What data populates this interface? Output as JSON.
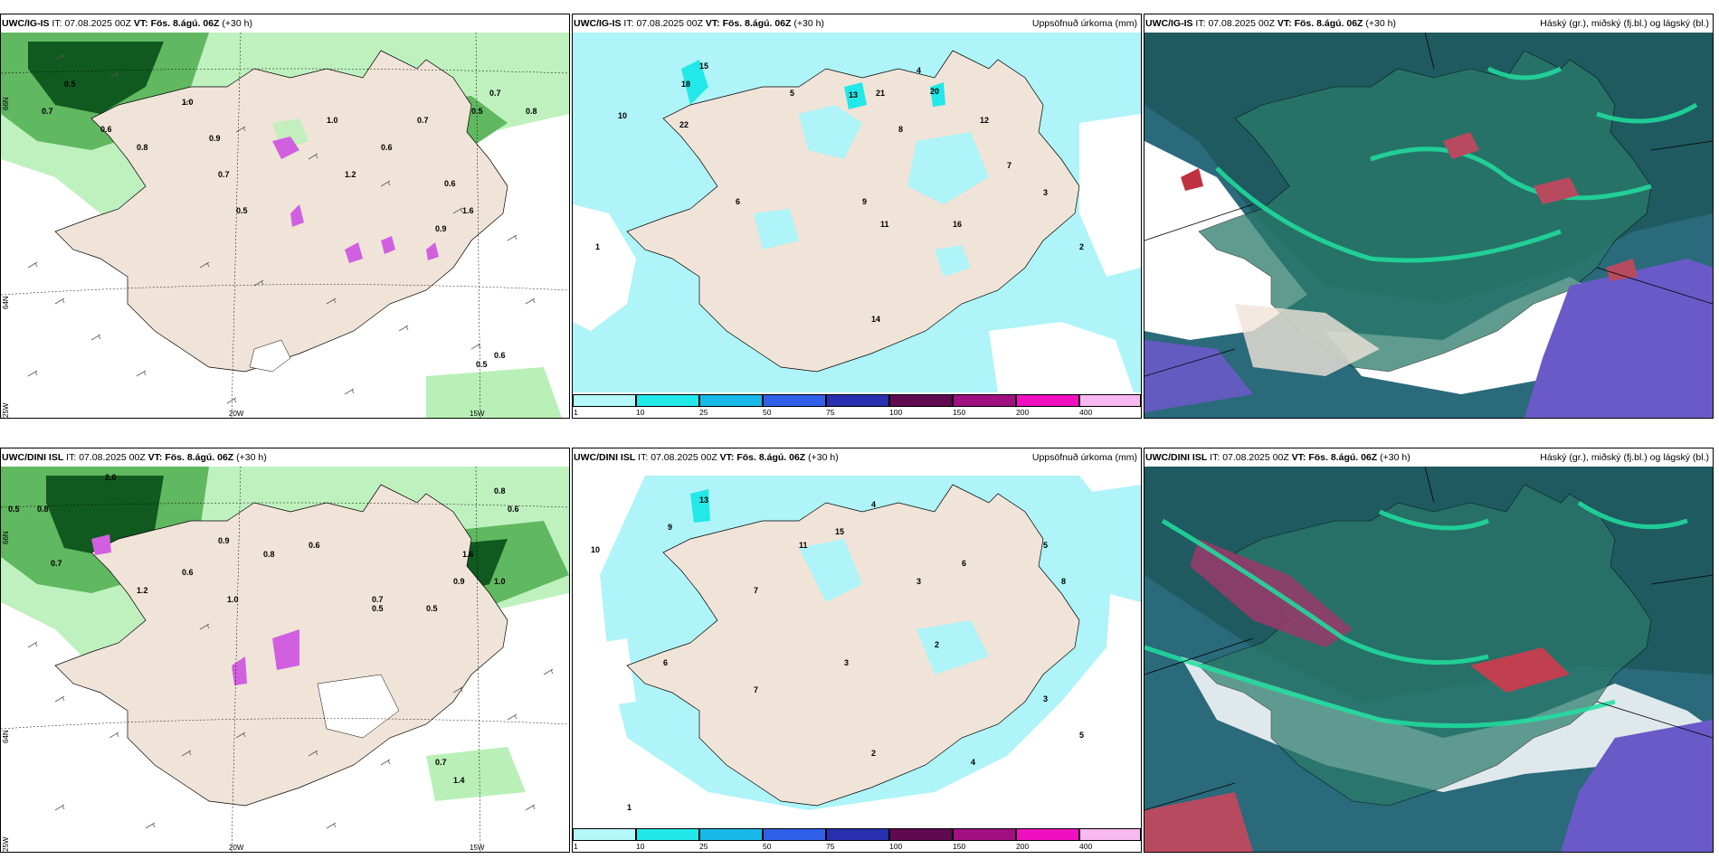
{
  "panels": {
    "p1": {
      "model": "UWC/IG-IS",
      "it": "07.08.2025 00Z",
      "vt": "Fös. 8.ágú. 06Z",
      "lead": "(+30 h)",
      "title_right": ""
    },
    "p2": {
      "model": "UWC/IG-IS",
      "it": "07.08.2025 00Z",
      "vt": "Fös. 8.ágú. 06Z",
      "lead": "(+30 h)",
      "title_right": "Uppsöfnuð úrkoma (mm)"
    },
    "p3": {
      "model": "UWC/IG-IS",
      "it": "07.08.2025 00Z",
      "vt": "Fös. 8.ágú. 06Z",
      "lead": "(+30 h)",
      "title_right": "Háský (gr.), miðský (fj.bl.) og lágský (bl.)"
    },
    "p4": {
      "model": "UWC/DINI ISL",
      "it": "07.08.2025 00Z",
      "vt": "Fös. 8.ágú. 06Z",
      "lead": "(+30 h)",
      "title_right": ""
    },
    "p5": {
      "model": "UWC/DINI ISL",
      "it": "07.08.2025 00Z",
      "vt": "Fös. 8.ágú. 06Z",
      "lead": "(+30 h)",
      "title_right": "Uppsöfnuð úrkoma (mm)"
    },
    "p6": {
      "model": "UWC/DINI ISL",
      "it": "07.08.2025 00Z",
      "vt": "Fös. 8.ágú. 06Z",
      "lead": "(+30 h)",
      "title_right": "Háský (gr.), miðský (fj.bl.) og lágský (bl.)"
    }
  },
  "labels": {
    "it": "IT:",
    "vt": "VT:"
  },
  "axes": {
    "lat66": "66N",
    "lat64": "64N",
    "lon25": "25W",
    "lon20": "20W",
    "lon15": "15W"
  },
  "colorbar": {
    "ticks": [
      "1",
      "10",
      "25",
      "50",
      "75",
      "100",
      "150",
      "200",
      "400"
    ],
    "colors": [
      "#b4f8fa",
      "#22e8e8",
      "#18b8e8",
      "#3060e8",
      "#2830b0",
      "#600a50",
      "#a01080",
      "#f010c0",
      "#f8b8f0"
    ]
  },
  "colors": {
    "land": "#f0e4d8",
    "precip_light": "#aef4f8",
    "cloud_high": "#2a6a7a",
    "cloud_mid": "#2a9a5a",
    "cloud_low": "#6a5ac8",
    "green_light": "#b8f0b8",
    "green_mid": "#60b860",
    "green_dark": "#105a20"
  },
  "rain_values": {
    "p1": [
      "0.7",
      "0.5",
      "0.6",
      "0.8",
      "1.0",
      "0.9",
      "0.5",
      "1.2",
      "0.6",
      "0.7",
      "0.6",
      "0.5",
      "0.9",
      "1.6",
      "0.7",
      "0.8",
      "0.5",
      "0.6",
      "1.0",
      "0.7"
    ],
    "p2": [
      "15",
      "18",
      "22",
      "10",
      "5",
      "4",
      "8",
      "13",
      "21",
      "20",
      "12",
      "7",
      "3",
      "2",
      "6",
      "11",
      "16",
      "9",
      "14",
      "1"
    ],
    "p4": [
      "2.0",
      "0.8",
      "0.5",
      "0.7",
      "1.2",
      "0.6",
      "0.9",
      "1.0",
      "0.8",
      "0.6",
      "0.7",
      "0.5",
      "0.9",
      "1.0",
      "1.6",
      "0.8",
      "0.6",
      "1.4",
      "0.7",
      "0.5"
    ],
    "p5": [
      "13",
      "9",
      "15",
      "10",
      "7",
      "4",
      "3",
      "6",
      "5",
      "8",
      "11",
      "2",
      "4",
      "3",
      "5",
      "6",
      "1",
      "7",
      "3",
      "2"
    ]
  }
}
